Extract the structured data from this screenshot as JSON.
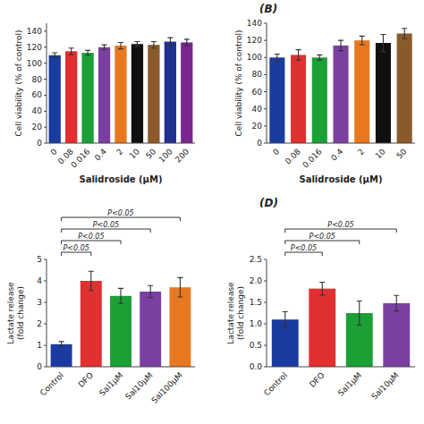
{
  "chart_data": [
    {
      "type": "bar",
      "categories": [
        "0",
        "0.08",
        "0.016",
        "0.4",
        "2",
        "10",
        "50",
        "100",
        "200"
      ],
      "values": [
        110,
        115,
        113,
        120,
        122,
        124,
        123,
        127,
        126
      ],
      "errors": [
        3,
        4,
        3,
        3,
        4,
        3,
        4,
        5,
        4
      ],
      "colors": [
        "#1A3BA0",
        "#E03030",
        "#1BA035",
        "#7B3FA0",
        "#E87820",
        "#101010",
        "#8B5A2B",
        "#203090",
        "#7B2590"
      ],
      "y_label": "Cell viability (% of control)",
      "x_label": "Salidroside (μM)",
      "ylim": [
        0,
        150
      ],
      "yticks": [
        0,
        20,
        40,
        60,
        80,
        100,
        120,
        140
      ],
      "grid": false
    },
    {
      "type": "bar",
      "title": "(B)",
      "categories": [
        "0",
        "0.08",
        "0.016",
        "0.4",
        "2",
        "10",
        "50"
      ],
      "values": [
        100,
        103,
        100,
        114,
        120,
        117,
        128
      ],
      "errors": [
        4,
        6,
        3,
        6,
        5,
        10,
        6
      ],
      "colors": [
        "#1A3BA0",
        "#E03030",
        "#1BA035",
        "#7B3FA0",
        "#E87820",
        "#101010",
        "#8B5A2B"
      ],
      "y_label": "Cell viability (% of control)",
      "x_label": "Salidroside (μM)",
      "ylim": [
        0,
        140
      ],
      "yticks": [
        0,
        20,
        40,
        60,
        80,
        100,
        120,
        140
      ],
      "grid": false
    },
    {
      "type": "bar",
      "categories": [
        "Control",
        "DFO",
        "Sal1μM",
        "Sal10μM",
        "Sal100μM"
      ],
      "values": [
        1.05,
        4.0,
        3.3,
        3.5,
        3.7
      ],
      "errors": [
        0.12,
        0.45,
        0.35,
        0.28,
        0.45
      ],
      "colors": [
        "#1A3BA0",
        "#E03030",
        "#1BA035",
        "#7B3FA0",
        "#E87820"
      ],
      "y_label": "Lactate release\n(fold change)",
      "ylim": [
        0,
        5
      ],
      "yticks": [
        0,
        1,
        2,
        3,
        4,
        5
      ],
      "grid": false,
      "annotations": [
        {
          "text": "P<0.05",
          "between": [
            "Control",
            "DFO"
          ]
        },
        {
          "text": "P<0.05",
          "between": [
            "Control",
            "Sal1μM"
          ]
        },
        {
          "text": "P<0.05",
          "between": [
            "Control",
            "Sal10μM"
          ]
        },
        {
          "text": "P<0.05",
          "between": [
            "Control",
            "Sal100μM"
          ]
        }
      ]
    },
    {
      "type": "bar",
      "title": "(D)",
      "categories": [
        "Control",
        "DFO",
        "Sal1μM",
        "Sal10μM"
      ],
      "values": [
        1.1,
        1.82,
        1.25,
        1.48
      ],
      "errors": [
        0.18,
        0.15,
        0.28,
        0.18
      ],
      "colors": [
        "#1A3BA0",
        "#E03030",
        "#1BA035",
        "#7B3FA0"
      ],
      "y_label": "Lactate release\n(fold change)",
      "ylim": [
        0,
        2.5
      ],
      "yticks": [
        {
          "value": 0,
          "label": "0.0"
        },
        0.5,
        {
          "value": 1,
          "label": "1.0"
        },
        1.5,
        {
          "value": 2,
          "label": "2.0"
        },
        2.5
      ],
      "grid": false,
      "annotations": [
        {
          "text": "P<0.05",
          "between": [
            "Control",
            "DFO"
          ]
        },
        {
          "text": "P<0.05",
          "between": [
            "Control",
            "Sal1μM"
          ]
        },
        {
          "text": "P<0.05",
          "between": [
            "Control",
            "Sal10μM"
          ]
        }
      ]
    }
  ]
}
